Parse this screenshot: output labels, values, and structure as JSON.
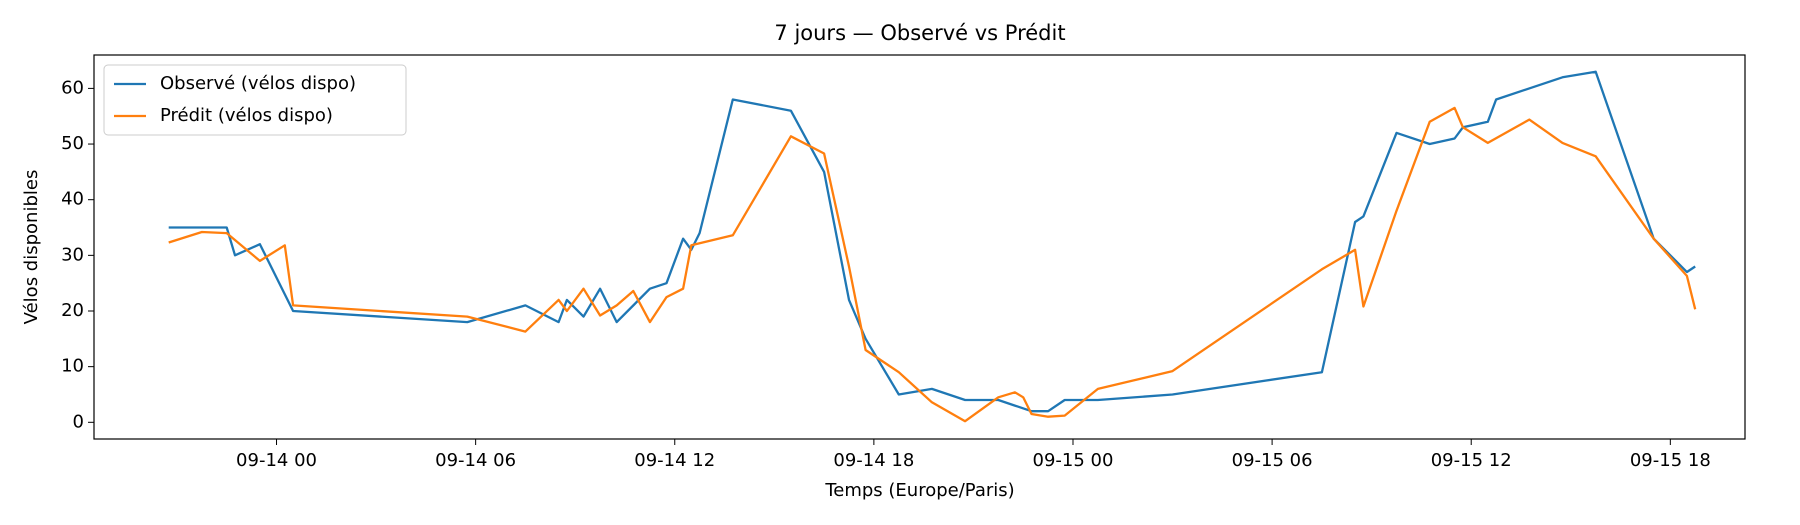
{
  "chart_data": {
    "type": "line",
    "title": "7 jours — Observé vs Prédit",
    "xlabel": "Temps (Europe/Paris)",
    "ylabel": "Vélos disponibles",
    "xlim": [
      "09-13 18:30",
      "09-15 20:15"
    ],
    "xticks": [
      "09-14 00",
      "09-14 06",
      "09-14 12",
      "09-14 18",
      "09-15 00",
      "09-15 06",
      "09-15 12",
      "09-15 18"
    ],
    "ylim": [
      -3,
      66
    ],
    "yticks": [
      0,
      10,
      20,
      30,
      40,
      50,
      60
    ],
    "legend": "upper left",
    "series": [
      {
        "name": "Observé (vélos dispo)",
        "color": "#1f77b4",
        "x": [
          "09-13 20:45",
          "09-13 22:30",
          "09-13 22:45",
          "09-13 23:30",
          "09-14 00:30",
          "09-14 05:45",
          "09-14 07:30",
          "09-14 08:30",
          "09-14 08:45",
          "09-14 09:15",
          "09-14 09:45",
          "09-14 10:15",
          "09-14 11:15",
          "09-14 11:45",
          "09-14 12:15",
          "09-14 12:30",
          "09-14 12:45",
          "09-14 13:45",
          "09-14 15:30",
          "09-14 16:30",
          "09-14 17:15",
          "09-14 17:45",
          "09-14 18:45",
          "09-14 19:45",
          "09-14 20:45",
          "09-14 21:45",
          "09-14 22:15",
          "09-14 22:45",
          "09-14 23:15",
          "09-14 23:45",
          "09-15 00:45",
          "09-15 03:00",
          "09-15 07:30",
          "09-15 08:30",
          "09-15 08:45",
          "09-15 09:45",
          "09-15 10:45",
          "09-15 11:30",
          "09-15 11:45",
          "09-15 12:30",
          "09-15 12:45",
          "09-15 14:45",
          "09-15 15:45",
          "09-15 17:30",
          "09-15 18:30",
          "09-15 18:45"
        ],
        "values": [
          35,
          35,
          30,
          32,
          20,
          18,
          21,
          18,
          22,
          19,
          24,
          18,
          24,
          25,
          33,
          31,
          34,
          58,
          56,
          45,
          22,
          15,
          5,
          6,
          4,
          4,
          3,
          2,
          2,
          4,
          4,
          5,
          9,
          36,
          37,
          52,
          50,
          51,
          53,
          54,
          58,
          62,
          63,
          33,
          27,
          28
        ]
      },
      {
        "name": "Prédit (vélos dispo)",
        "color": "#ff7f0e",
        "x": [
          "09-13 20:45",
          "09-13 21:45",
          "09-13 22:30",
          "09-13 23:30",
          "09-14 00:15",
          "09-14 00:30",
          "09-14 05:45",
          "09-14 07:30",
          "09-14 08:30",
          "09-14 08:45",
          "09-14 09:15",
          "09-14 09:45",
          "09-14 10:15",
          "09-14 10:45",
          "09-14 11:15",
          "09-14 11:45",
          "09-14 12:15",
          "09-14 12:30",
          "09-14 13:45",
          "09-14 15:30",
          "09-14 16:30",
          "09-14 17:15",
          "09-14 17:45",
          "09-14 18:45",
          "09-14 19:45",
          "09-14 20:45",
          "09-14 21:45",
          "09-14 22:15",
          "09-14 22:30",
          "09-14 22:45",
          "09-14 23:15",
          "09-14 23:45",
          "09-15 00:45",
          "09-15 03:00",
          "09-15 07:30",
          "09-15 08:30",
          "09-15 08:45",
          "09-15 09:45",
          "09-15 10:45",
          "09-15 11:30",
          "09-15 11:45",
          "09-15 12:30",
          "09-15 13:45",
          "09-15 14:45",
          "09-15 15:45",
          "09-15 17:30",
          "09-15 18:30",
          "09-15 18:45"
        ],
        "values": [
          32.3,
          34.2,
          34,
          29,
          31.8,
          21,
          19,
          16.3,
          22,
          20,
          24,
          19.2,
          21,
          23.6,
          18,
          22.5,
          24,
          31.8,
          33.6,
          51.4,
          48.3,
          28,
          13,
          9,
          3.6,
          0.2,
          4.5,
          5.4,
          4.5,
          1.5,
          1,
          1.2,
          6,
          9.2,
          27.5,
          31,
          20.8,
          38,
          54,
          56.5,
          53,
          50.2,
          54.4,
          50.2,
          47.8,
          33,
          26.3,
          20.3
        ]
      }
    ]
  }
}
